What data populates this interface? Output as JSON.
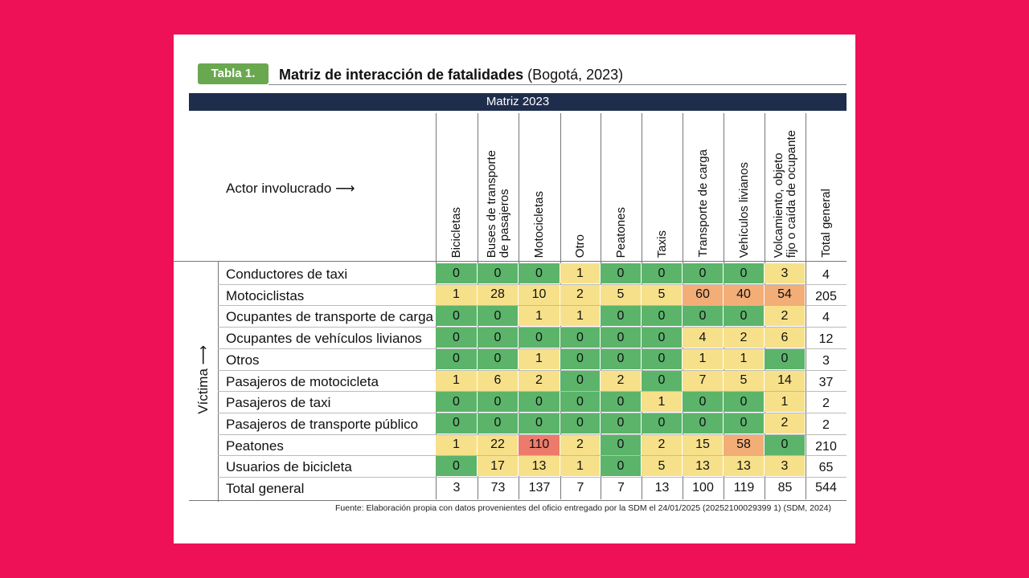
{
  "tag": "Tabla 1.",
  "title_bold": "Matriz de interacción de fatalidades",
  "title_rest": " (Bogotá, 2023)",
  "band": "Matriz 2023",
  "actor_label": "Actor involucrado ⟶",
  "victim_label": "Víctima ⟶",
  "columns": [
    "Bicicletas",
    "Buses de transporte\nde pasajeros",
    "Motocicletas",
    "Otro",
    "Peatones",
    "Taxis",
    "Transporte de carga",
    "Vehículos livianos",
    "Volcamiento, objeto\nfijo o caída de ocupante",
    "Total general"
  ],
  "rows": [
    {
      "label": "Conductores de taxi",
      "values": [
        0,
        0,
        0,
        1,
        0,
        0,
        0,
        0,
        3
      ],
      "total": 4
    },
    {
      "label": "Motociclistas",
      "values": [
        1,
        28,
        10,
        2,
        5,
        5,
        60,
        40,
        54
      ],
      "total": 205
    },
    {
      "label": "Ocupantes de transporte de carga",
      "values": [
        0,
        0,
        1,
        1,
        0,
        0,
        0,
        0,
        2
      ],
      "total": 4
    },
    {
      "label": "Ocupantes de vehículos livianos",
      "values": [
        0,
        0,
        0,
        0,
        0,
        0,
        4,
        2,
        6
      ],
      "total": 12
    },
    {
      "label": "Otros",
      "values": [
        0,
        0,
        1,
        0,
        0,
        0,
        1,
        1,
        0
      ],
      "total": 3
    },
    {
      "label": "Pasajeros de motocicleta",
      "values": [
        1,
        6,
        2,
        0,
        2,
        0,
        7,
        5,
        14
      ],
      "total": 37
    },
    {
      "label": "Pasajeros de taxi",
      "values": [
        0,
        0,
        0,
        0,
        0,
        1,
        0,
        0,
        1
      ],
      "total": 2
    },
    {
      "label": "Pasajeros de transporte público",
      "values": [
        0,
        0,
        0,
        0,
        0,
        0,
        0,
        0,
        2
      ],
      "total": 2
    },
    {
      "label": "Peatones",
      "values": [
        1,
        22,
        110,
        2,
        0,
        2,
        15,
        58,
        0
      ],
      "total": 210
    },
    {
      "label": "Usuarios de bicicleta",
      "values": [
        0,
        17,
        13,
        1,
        0,
        5,
        13,
        13,
        3
      ],
      "total": 65
    }
  ],
  "totals": {
    "label": "Total general",
    "values": [
      3,
      73,
      137,
      7,
      7,
      13,
      100,
      119,
      85
    ],
    "total": 544
  },
  "colors": {
    "green": "#5bb46a",
    "yellow": "#f7e08a",
    "orange": "#f3ad77",
    "red": "#ec7b6c"
  },
  "source": "Fuente: Elaboración propia con datos provenientes del oficio entregado por la SDM el 24/01/2025 (20252100029399 1) (SDM, 2024)"
}
